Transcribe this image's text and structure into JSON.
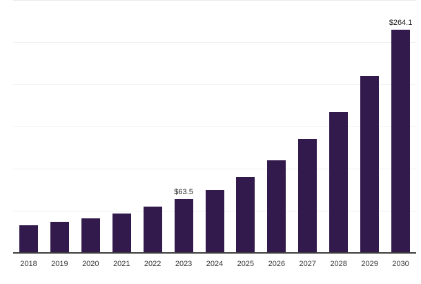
{
  "chart_data": {
    "type": "bar",
    "title": "",
    "xlabel": "",
    "ylabel": "",
    "categories": [
      "2018",
      "2019",
      "2020",
      "2021",
      "2022",
      "2023",
      "2024",
      "2025",
      "2026",
      "2027",
      "2028",
      "2029",
      "2030"
    ],
    "values": [
      31.6,
      35.7,
      39.8,
      46.3,
      53.7,
      63.5,
      73.8,
      89.3,
      109.0,
      134.4,
      166.4,
      209.4,
      264.1
    ],
    "data_labels": {
      "2023": "$63.5",
      "2030": "$264.1"
    },
    "ylim": [
      0,
      300
    ],
    "gridline_step": 50,
    "grid": true,
    "legend": false,
    "colors": {
      "bar": "#331a4d",
      "axis_line": "#3d3d3d",
      "gridline": "#f1f1f1",
      "top_gridline": "#e9e9e9",
      "value_label": "#1a1a1a",
      "tick_label": "#333333",
      "background": "#ffffff"
    }
  }
}
